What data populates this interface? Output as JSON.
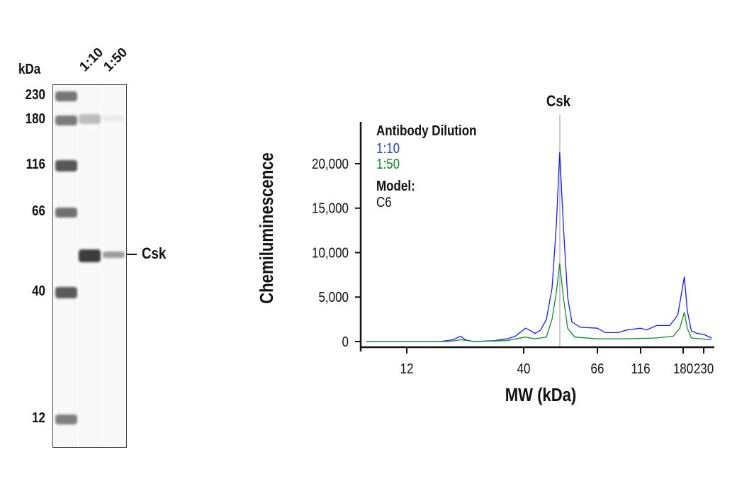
{
  "blot": {
    "unit_label": "kDa",
    "lane_labels": [
      "1:10",
      "1:50"
    ],
    "markers": [
      "230",
      "180",
      "116",
      "66",
      "40",
      "12"
    ],
    "band_label": "Csk"
  },
  "chart_data": {
    "type": "line",
    "title": "Csk",
    "xlabel": "MW (kDa)",
    "ylabel": "Chemiluminescence",
    "x_ticks": [
      12,
      40,
      66,
      116,
      180,
      230
    ],
    "x_tick_labels": [
      "12",
      "40",
      "66",
      "116",
      "180",
      "230"
    ],
    "y_ticks": [
      0,
      5000,
      10000,
      15000,
      20000
    ],
    "y_tick_labels": [
      "0",
      "5,000",
      "10,000",
      "15,000",
      "20,000"
    ],
    "reference_line_x": 52.7,
    "grid": false,
    "legend": {
      "title": "Antibody Dilution",
      "placement": "top-left",
      "model_label": "Model:",
      "model_value": "C6"
    },
    "series": [
      {
        "name": "1:10",
        "color": "#1a1aff",
        "x": [
          2,
          20,
          23,
          24.9,
          26,
          28,
          33,
          36,
          38,
          40.6,
          42,
          44,
          46,
          48,
          50,
          51.5,
          52.7,
          54,
          55.5,
          57,
          60,
          66,
          75,
          90,
          100,
          116,
          125,
          140,
          160,
          172,
          183,
          190,
          200,
          215,
          230,
          250
        ],
        "y": [
          0,
          0,
          200,
          600,
          200,
          0,
          100,
          300,
          600,
          1500,
          1300,
          900,
          1300,
          2500,
          6000,
          13000,
          21300,
          13000,
          5000,
          2200,
          1600,
          1500,
          1000,
          1000,
          1300,
          1500,
          1300,
          1800,
          1800,
          3000,
          7300,
          3500,
          1200,
          900,
          800,
          400
        ]
      },
      {
        "name": "1:50",
        "color": "#138a2e",
        "x": [
          2,
          22,
          25,
          28,
          36,
          40.6,
          44,
          48,
          50,
          51.5,
          52.7,
          54,
          55.5,
          58,
          66,
          100,
          140,
          165,
          175,
          183,
          190,
          200,
          250
        ],
        "y": [
          0,
          0,
          200,
          0,
          100,
          500,
          300,
          500,
          2500,
          5500,
          8800,
          5000,
          1500,
          500,
          300,
          300,
          400,
          600,
          1500,
          3300,
          1500,
          400,
          200
        ]
      }
    ]
  }
}
